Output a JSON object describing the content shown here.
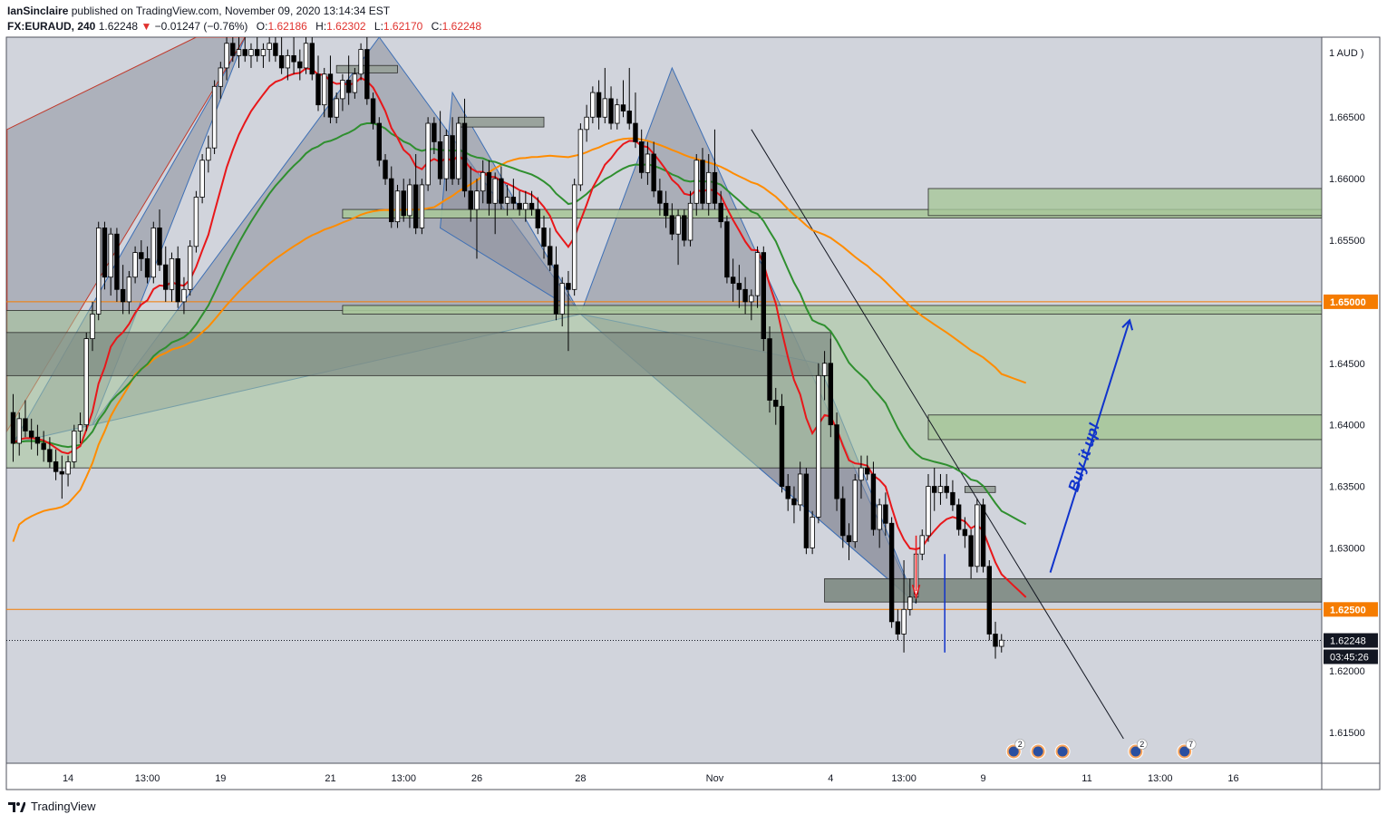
{
  "header": {
    "publisher": "IanSinclaire",
    "published_text": "published on TradingView.com, November 09, 2020 13:14:34 EST",
    "symbol": "FX:EURAUD, 240",
    "last": "1.62248",
    "change_arrow": "▼",
    "change": "−0.01247 (−0.76%)",
    "open_label": "O:",
    "open": "1.62186",
    "high_label": "H:",
    "high": "1.62302",
    "low_label": "L:",
    "low": "1.62170",
    "close_label": "C:",
    "close": "1.62248"
  },
  "footer": {
    "brand": "TradingView"
  },
  "colors": {
    "background": "#d1d4dc",
    "up_candle": "#ffffff",
    "down_candle": "#000000",
    "ema_fast": "#e8171a",
    "ema_mid": "#2f8f2f",
    "ema_slow": "#ff8c00",
    "zone": "#a8c79a",
    "pattern": "#8a8e9a",
    "level_line": "#f57c00",
    "arrow_blue": "#1033cc",
    "arrow_red": "#e8171a"
  },
  "chart_data": {
    "type": "candlestick",
    "currency_label": "AUD",
    "ylim": [
      1.6125,
      1.6715
    ],
    "y_ticks": [
      {
        "v": 1.665,
        "t": "1.66500"
      },
      {
        "v": 1.66,
        "t": "1.66000"
      },
      {
        "v": 1.655,
        "t": "1.65500"
      },
      {
        "v": 1.645,
        "t": "1.64500"
      },
      {
        "v": 1.64,
        "t": "1.64000"
      },
      {
        "v": 1.635,
        "t": "1.63500"
      },
      {
        "v": 1.63,
        "t": "1.63000"
      },
      {
        "v": 1.62,
        "t": "1.62000"
      },
      {
        "v": 1.615,
        "t": "1.61500"
      }
    ],
    "x_ticks": [
      {
        "i": 9,
        "t": "14"
      },
      {
        "i": 22,
        "t": "13:00"
      },
      {
        "i": 34,
        "t": "19"
      },
      {
        "i": 52,
        "t": "21"
      },
      {
        "i": 64,
        "t": "13:00"
      },
      {
        "i": 76,
        "t": "26"
      },
      {
        "i": 93,
        "t": "28"
      },
      {
        "i": 115,
        "t": "Nov"
      },
      {
        "i": 134,
        "t": "4"
      },
      {
        "i": 146,
        "t": "13:00"
      },
      {
        "i": 159,
        "t": "9"
      },
      {
        "i": 176,
        "t": "11"
      },
      {
        "i": 188,
        "t": "13:00"
      },
      {
        "i": 200,
        "t": "16"
      }
    ],
    "levels": [
      {
        "v": 1.65,
        "label": "1.65000"
      },
      {
        "v": 1.625,
        "label": "1.62500"
      }
    ],
    "current_price": {
      "v": 1.62248,
      "label": "1.62248",
      "countdown": "03:45:26"
    },
    "annotation": "Buy it up!",
    "event_badges": [
      {
        "i": 164,
        "count": "2"
      },
      {
        "i": 168,
        "count": ""
      },
      {
        "i": 172,
        "count": ""
      },
      {
        "i": 184,
        "count": "2"
      },
      {
        "i": 192,
        "count": "7"
      }
    ],
    "candles": [
      [
        1.641,
        1.6425,
        1.637,
        1.6385
      ],
      [
        1.6385,
        1.641,
        1.6375,
        1.6405
      ],
      [
        1.6405,
        1.642,
        1.639,
        1.6395
      ],
      [
        1.6395,
        1.6405,
        1.638,
        1.639
      ],
      [
        1.639,
        1.64,
        1.6375,
        1.6385
      ],
      [
        1.6385,
        1.6395,
        1.637,
        1.638
      ],
      [
        1.638,
        1.639,
        1.6365,
        1.637
      ],
      [
        1.637,
        1.638,
        1.6355,
        1.6362
      ],
      [
        1.6362,
        1.6375,
        1.634,
        1.636
      ],
      [
        1.636,
        1.6375,
        1.635,
        1.637
      ],
      [
        1.637,
        1.64,
        1.6365,
        1.6395
      ],
      [
        1.6395,
        1.641,
        1.6385,
        1.64
      ],
      [
        1.64,
        1.6475,
        1.6395,
        1.647
      ],
      [
        1.647,
        1.65,
        1.646,
        1.649
      ],
      [
        1.649,
        1.6565,
        1.6485,
        1.656
      ],
      [
        1.656,
        1.6565,
        1.651,
        1.652
      ],
      [
        1.652,
        1.656,
        1.6505,
        1.6555
      ],
      [
        1.6555,
        1.656,
        1.65,
        1.651
      ],
      [
        1.651,
        1.653,
        1.649,
        1.65
      ],
      [
        1.65,
        1.6525,
        1.649,
        1.652
      ],
      [
        1.652,
        1.6545,
        1.6515,
        1.654
      ],
      [
        1.654,
        1.655,
        1.6525,
        1.6535
      ],
      [
        1.6535,
        1.6545,
        1.6515,
        1.652
      ],
      [
        1.652,
        1.6565,
        1.6515,
        1.656
      ],
      [
        1.656,
        1.6575,
        1.6525,
        1.653
      ],
      [
        1.653,
        1.6545,
        1.65,
        1.651
      ],
      [
        1.651,
        1.654,
        1.65,
        1.6535
      ],
      [
        1.6535,
        1.6545,
        1.6495,
        1.65
      ],
      [
        1.65,
        1.652,
        1.649,
        1.651
      ],
      [
        1.651,
        1.655,
        1.6505,
        1.6545
      ],
      [
        1.6545,
        1.659,
        1.654,
        1.6585
      ],
      [
        1.6585,
        1.662,
        1.658,
        1.6615
      ],
      [
        1.6615,
        1.6635,
        1.6605,
        1.6625
      ],
      [
        1.6625,
        1.668,
        1.662,
        1.6675
      ],
      [
        1.6675,
        1.6695,
        1.6665,
        1.669
      ],
      [
        1.669,
        1.6715,
        1.668,
        1.671
      ],
      [
        1.671,
        1.6715,
        1.6695,
        1.67
      ],
      [
        1.67,
        1.6715,
        1.669,
        1.6705
      ],
      [
        1.6705,
        1.6715,
        1.6695,
        1.67
      ],
      [
        1.67,
        1.671,
        1.669,
        1.6705
      ],
      [
        1.6705,
        1.6715,
        1.6695,
        1.67
      ],
      [
        1.67,
        1.671,
        1.669,
        1.6705
      ],
      [
        1.6705,
        1.6715,
        1.6695,
        1.671
      ],
      [
        1.671,
        1.6715,
        1.6695,
        1.67
      ],
      [
        1.67,
        1.6715,
        1.6685,
        1.669
      ],
      [
        1.669,
        1.6705,
        1.668,
        1.67
      ],
      [
        1.67,
        1.6715,
        1.6685,
        1.6695
      ],
      [
        1.6695,
        1.6705,
        1.668,
        1.669
      ],
      [
        1.669,
        1.6715,
        1.6685,
        1.671
      ],
      [
        1.671,
        1.6715,
        1.668,
        1.6685
      ],
      [
        1.6685,
        1.67,
        1.6655,
        1.666
      ],
      [
        1.666,
        1.669,
        1.665,
        1.6685
      ],
      [
        1.6685,
        1.67,
        1.6645,
        1.665
      ],
      [
        1.665,
        1.667,
        1.6645,
        1.6665
      ],
      [
        1.6665,
        1.6685,
        1.6655,
        1.668
      ],
      [
        1.668,
        1.67,
        1.666,
        1.667
      ],
      [
        1.667,
        1.669,
        1.6665,
        1.6685
      ],
      [
        1.6685,
        1.671,
        1.668,
        1.6705
      ],
      [
        1.6705,
        1.6715,
        1.666,
        1.6665
      ],
      [
        1.6665,
        1.667,
        1.664,
        1.6645
      ],
      [
        1.6645,
        1.665,
        1.661,
        1.6615
      ],
      [
        1.6615,
        1.662,
        1.6595,
        1.66
      ],
      [
        1.66,
        1.661,
        1.656,
        1.6565
      ],
      [
        1.6565,
        1.6595,
        1.656,
        1.659
      ],
      [
        1.659,
        1.66,
        1.6565,
        1.657
      ],
      [
        1.657,
        1.66,
        1.656,
        1.6595
      ],
      [
        1.6595,
        1.662,
        1.6555,
        1.656
      ],
      [
        1.656,
        1.66,
        1.6555,
        1.6595
      ],
      [
        1.6595,
        1.665,
        1.659,
        1.6645
      ],
      [
        1.6645,
        1.665,
        1.662,
        1.663
      ],
      [
        1.663,
        1.6655,
        1.6595,
        1.66
      ],
      [
        1.66,
        1.664,
        1.659,
        1.6635
      ],
      [
        1.6635,
        1.665,
        1.6595,
        1.66
      ],
      [
        1.66,
        1.665,
        1.6595,
        1.6645
      ],
      [
        1.6645,
        1.6665,
        1.6585,
        1.659
      ],
      [
        1.659,
        1.661,
        1.6565,
        1.6575
      ],
      [
        1.6575,
        1.66,
        1.6535,
        1.659
      ],
      [
        1.659,
        1.6615,
        1.658,
        1.6605
      ],
      [
        1.6605,
        1.6615,
        1.657,
        1.658
      ],
      [
        1.658,
        1.6605,
        1.6555,
        1.66
      ],
      [
        1.66,
        1.661,
        1.6575,
        1.658
      ],
      [
        1.658,
        1.6595,
        1.657,
        1.6585
      ],
      [
        1.6585,
        1.66,
        1.6575,
        1.658
      ],
      [
        1.658,
        1.659,
        1.657,
        1.6575
      ],
      [
        1.6575,
        1.659,
        1.6565,
        1.658
      ],
      [
        1.658,
        1.659,
        1.657,
        1.6575
      ],
      [
        1.6575,
        1.6585,
        1.6555,
        1.656
      ],
      [
        1.656,
        1.657,
        1.6535,
        1.6545
      ],
      [
        1.6545,
        1.656,
        1.6525,
        1.653
      ],
      [
        1.653,
        1.6545,
        1.6485,
        1.649
      ],
      [
        1.649,
        1.652,
        1.648,
        1.6515
      ],
      [
        1.6515,
        1.6525,
        1.646,
        1.651
      ],
      [
        1.651,
        1.66,
        1.6505,
        1.6595
      ],
      [
        1.6595,
        1.6645,
        1.659,
        1.664
      ],
      [
        1.664,
        1.666,
        1.663,
        1.665
      ],
      [
        1.665,
        1.6675,
        1.6645,
        1.667
      ],
      [
        1.667,
        1.668,
        1.664,
        1.665
      ],
      [
        1.665,
        1.669,
        1.6645,
        1.6665
      ],
      [
        1.6665,
        1.6675,
        1.664,
        1.6645
      ],
      [
        1.6645,
        1.6665,
        1.664,
        1.666
      ],
      [
        1.666,
        1.668,
        1.665,
        1.6655
      ],
      [
        1.6655,
        1.669,
        1.664,
        1.6645
      ],
      [
        1.6645,
        1.667,
        1.6625,
        1.663
      ],
      [
        1.663,
        1.664,
        1.66,
        1.6605
      ],
      [
        1.6605,
        1.663,
        1.6595,
        1.662
      ],
      [
        1.662,
        1.663,
        1.6585,
        1.659
      ],
      [
        1.659,
        1.66,
        1.657,
        1.658
      ],
      [
        1.658,
        1.659,
        1.656,
        1.657
      ],
      [
        1.657,
        1.658,
        1.655,
        1.6555
      ],
      [
        1.6555,
        1.6575,
        1.653,
        1.657
      ],
      [
        1.657,
        1.6575,
        1.6545,
        1.655
      ],
      [
        1.655,
        1.659,
        1.6545,
        1.658
      ],
      [
        1.658,
        1.662,
        1.657,
        1.6615
      ],
      [
        1.6615,
        1.6625,
        1.6575,
        1.658
      ],
      [
        1.658,
        1.662,
        1.657,
        1.6605
      ],
      [
        1.6605,
        1.664,
        1.6575,
        1.658
      ],
      [
        1.658,
        1.659,
        1.656,
        1.6565
      ],
      [
        1.6565,
        1.657,
        1.6515,
        1.652
      ],
      [
        1.652,
        1.6535,
        1.65,
        1.6515
      ],
      [
        1.6515,
        1.653,
        1.6495,
        1.651
      ],
      [
        1.651,
        1.652,
        1.649,
        1.65
      ],
      [
        1.65,
        1.651,
        1.6485,
        1.6505
      ],
      [
        1.6505,
        1.6545,
        1.6495,
        1.654
      ],
      [
        1.654,
        1.6545,
        1.646,
        1.647
      ],
      [
        1.647,
        1.648,
        1.641,
        1.642
      ],
      [
        1.642,
        1.643,
        1.64,
        1.6415
      ],
      [
        1.6415,
        1.6425,
        1.6345,
        1.635
      ],
      [
        1.635,
        1.636,
        1.633,
        1.634
      ],
      [
        1.634,
        1.635,
        1.632,
        1.6335
      ],
      [
        1.6335,
        1.637,
        1.633,
        1.636
      ],
      [
        1.636,
        1.6365,
        1.6295,
        1.63
      ],
      [
        1.63,
        1.633,
        1.6295,
        1.6325
      ],
      [
        1.6325,
        1.645,
        1.632,
        1.644
      ],
      [
        1.644,
        1.646,
        1.642,
        1.645
      ],
      [
        1.645,
        1.647,
        1.639,
        1.64
      ],
      [
        1.64,
        1.641,
        1.633,
        1.634
      ],
      [
        1.634,
        1.635,
        1.63,
        1.631
      ],
      [
        1.631,
        1.632,
        1.629,
        1.6305
      ],
      [
        1.6305,
        1.636,
        1.63,
        1.6355
      ],
      [
        1.6355,
        1.6375,
        1.634,
        1.6365
      ],
      [
        1.6365,
        1.6375,
        1.6355,
        1.636
      ],
      [
        1.636,
        1.637,
        1.631,
        1.6315
      ],
      [
        1.6315,
        1.634,
        1.63,
        1.6335
      ],
      [
        1.6335,
        1.6345,
        1.631,
        1.632
      ],
      [
        1.632,
        1.6325,
        1.6235,
        1.624
      ],
      [
        1.624,
        1.625,
        1.6225,
        1.623
      ],
      [
        1.623,
        1.629,
        1.6215,
        1.625
      ],
      [
        1.625,
        1.6275,
        1.6245,
        1.626
      ],
      [
        1.626,
        1.63,
        1.6255,
        1.6295
      ],
      [
        1.6295,
        1.6315,
        1.629,
        1.631
      ],
      [
        1.631,
        1.636,
        1.6305,
        1.635
      ],
      [
        1.635,
        1.6365,
        1.633,
        1.6345
      ],
      [
        1.6345,
        1.636,
        1.6335,
        1.635
      ],
      [
        1.635,
        1.636,
        1.634,
        1.6345
      ],
      [
        1.6345,
        1.6355,
        1.633,
        1.6335
      ],
      [
        1.6335,
        1.634,
        1.631,
        1.6315
      ],
      [
        1.6315,
        1.6325,
        1.63,
        1.631
      ],
      [
        1.631,
        1.6315,
        1.6275,
        1.6285
      ],
      [
        1.6285,
        1.634,
        1.628,
        1.6335
      ],
      [
        1.6335,
        1.634,
        1.628,
        1.6285
      ],
      [
        1.6285,
        1.629,
        1.6225,
        1.623
      ],
      [
        1.623,
        1.624,
        1.621,
        1.622
      ],
      [
        1.622,
        1.623,
        1.6215,
        1.6225
      ]
    ]
  }
}
